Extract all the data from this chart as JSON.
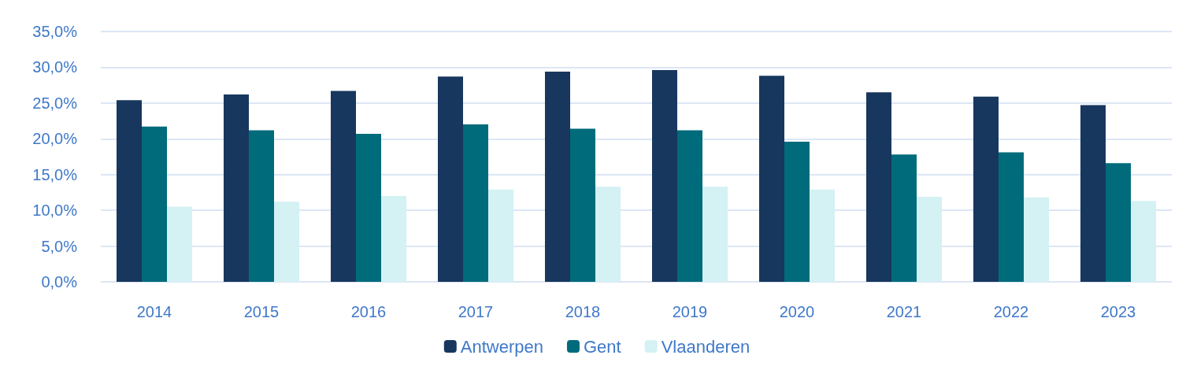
{
  "chart_data": {
    "type": "bar",
    "categories": [
      "2014",
      "2015",
      "2016",
      "2017",
      "2018",
      "2019",
      "2020",
      "2021",
      "2022",
      "2023"
    ],
    "series": [
      {
        "name": "Antwerpen",
        "color": "#17375e",
        "values": [
          25.4,
          26.2,
          26.7,
          28.7,
          29.4,
          29.6,
          28.8,
          26.5,
          25.9,
          24.7
        ]
      },
      {
        "name": "Gent",
        "color": "#006b7b",
        "values": [
          21.7,
          21.2,
          20.7,
          22.0,
          21.4,
          21.2,
          19.6,
          17.8,
          18.1,
          16.6
        ]
      },
      {
        "name": "Vlaanderen",
        "color": "#d4f1f4",
        "values": [
          10.5,
          11.2,
          12.0,
          12.9,
          13.3,
          13.3,
          12.9,
          11.9,
          11.8,
          11.3
        ]
      }
    ],
    "ylim": [
      0,
      35
    ],
    "yticks": [
      {
        "value": 0,
        "label": "0,0%"
      },
      {
        "value": 5,
        "label": "5,0%"
      },
      {
        "value": 10,
        "label": "10,0%"
      },
      {
        "value": 15,
        "label": "15,0%"
      },
      {
        "value": 20,
        "label": "20,0%"
      },
      {
        "value": 25,
        "label": "25,0%"
      },
      {
        "value": 30,
        "label": "30,0%"
      },
      {
        "value": 35,
        "label": "35,0%"
      }
    ],
    "grid": "y",
    "legend": "bottom"
  }
}
